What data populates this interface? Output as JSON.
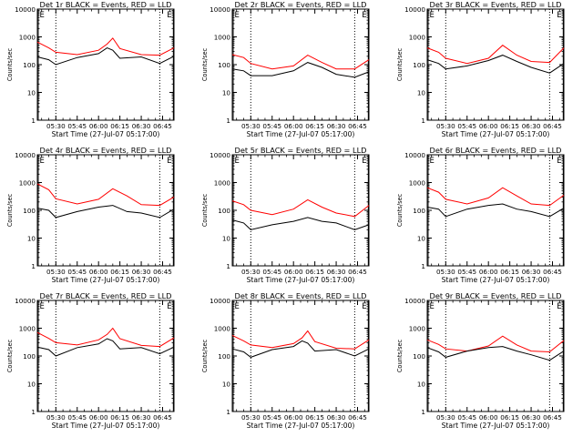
{
  "chart_data": {
    "type": "line",
    "grid": false,
    "yscale": "log",
    "ylim": [
      1,
      10000
    ],
    "ytick_labels": [
      "1",
      "10",
      "100",
      "1000",
      "10000"
    ],
    "ytick_values": [
      1,
      10,
      100,
      1000,
      10000
    ],
    "xlim": [
      "05:17:00",
      "06:53:00"
    ],
    "xtick_labels": [
      "05:30",
      "05:45",
      "06:00",
      "06:15",
      "06:30",
      "06:45"
    ],
    "xtick_values": [
      "05:30",
      "05:45",
      "06:00",
      "06:15",
      "06:30",
      "06:45"
    ],
    "ylabel": "Counts/sec",
    "xlabel": "Start Time (27-Jul-07 05:17:00)",
    "marker_label": "E",
    "marker_times": [
      "05:17:40",
      "06:52:30"
    ],
    "dotted_times": [
      "05:30",
      "06:43"
    ],
    "series_colors": {
      "events": "#000000",
      "lld": "#ff0000"
    },
    "panels": [
      {
        "title": "Det 1r BLACK = Events, RED = LLD",
        "lld": {
          "x": [
            "05:17",
            "05:25",
            "05:30",
            "05:45",
            "06:00",
            "06:06",
            "06:10",
            "06:15",
            "06:30",
            "06:43",
            "06:53"
          ],
          "y": [
            650,
            400,
            280,
            230,
            330,
            550,
            900,
            380,
            230,
            220,
            400
          ]
        },
        "events": {
          "x": [
            "05:17",
            "05:25",
            "05:30",
            "05:45",
            "06:00",
            "06:06",
            "06:10",
            "06:15",
            "06:30",
            "06:43",
            "06:53"
          ],
          "y": [
            190,
            150,
            100,
            180,
            250,
            400,
            330,
            170,
            190,
            110,
            200
          ]
        }
      },
      {
        "title": "Det 2r BLACK = Events, RED = LLD",
        "lld": {
          "x": [
            "05:17",
            "05:25",
            "05:30",
            "05:45",
            "06:00",
            "06:10",
            "06:20",
            "06:30",
            "06:43",
            "06:53"
          ],
          "y": [
            230,
            180,
            110,
            70,
            90,
            220,
            120,
            70,
            70,
            150
          ]
        },
        "events": {
          "x": [
            "05:17",
            "05:25",
            "05:30",
            "05:45",
            "06:00",
            "06:10",
            "06:20",
            "06:30",
            "06:43",
            "06:53"
          ],
          "y": [
            70,
            60,
            40,
            40,
            60,
            120,
            80,
            45,
            35,
            55
          ]
        }
      },
      {
        "title": "Det 3r BLACK = Events, RED = LLD",
        "lld": {
          "x": [
            "05:17",
            "05:25",
            "05:30",
            "05:45",
            "06:00",
            "06:10",
            "06:20",
            "06:30",
            "06:43",
            "06:53"
          ],
          "y": [
            400,
            280,
            170,
            110,
            170,
            500,
            220,
            130,
            120,
            400
          ]
        },
        "events": {
          "x": [
            "05:17",
            "05:25",
            "05:30",
            "05:45",
            "06:00",
            "06:10",
            "06:20",
            "06:30",
            "06:43",
            "06:53"
          ],
          "y": [
            150,
            110,
            70,
            90,
            140,
            220,
            130,
            80,
            50,
            110
          ]
        }
      },
      {
        "title": "Det 4r BLACK = Events, RED = LLD",
        "lld": {
          "x": [
            "05:17",
            "05:25",
            "05:30",
            "05:45",
            "06:00",
            "06:10",
            "06:20",
            "06:30",
            "06:43",
            "06:53"
          ],
          "y": [
            900,
            550,
            260,
            170,
            250,
            600,
            330,
            160,
            150,
            300
          ]
        },
        "events": {
          "x": [
            "05:17",
            "05:25",
            "05:30",
            "05:45",
            "06:00",
            "06:10",
            "06:20",
            "06:30",
            "06:43",
            "06:53"
          ],
          "y": [
            120,
            100,
            55,
            90,
            130,
            150,
            90,
            80,
            55,
            110
          ]
        }
      },
      {
        "title": "Det 5r BLACK = Events, RED = LLD",
        "lld": {
          "x": [
            "05:17",
            "05:25",
            "05:30",
            "05:45",
            "06:00",
            "06:10",
            "06:20",
            "06:30",
            "06:43",
            "06:53"
          ],
          "y": [
            220,
            160,
            100,
            70,
            110,
            240,
            130,
            80,
            60,
            150
          ]
        },
        "events": {
          "x": [
            "05:17",
            "05:25",
            "05:30",
            "05:45",
            "06:00",
            "06:10",
            "06:20",
            "06:30",
            "06:43",
            "06:53"
          ],
          "y": [
            45,
            35,
            20,
            30,
            40,
            55,
            40,
            35,
            20,
            30
          ]
        }
      },
      {
        "title": "Det 6r BLACK = Events, RED = LLD",
        "lld": {
          "x": [
            "05:17",
            "05:25",
            "05:30",
            "05:45",
            "06:00",
            "06:10",
            "06:20",
            "06:30",
            "06:43",
            "06:53"
          ],
          "y": [
            650,
            450,
            250,
            170,
            280,
            650,
            330,
            170,
            150,
            350
          ]
        },
        "events": {
          "x": [
            "05:17",
            "05:25",
            "05:30",
            "05:45",
            "06:00",
            "06:10",
            "06:20",
            "06:30",
            "06:43",
            "06:53"
          ],
          "y": [
            130,
            110,
            60,
            110,
            150,
            170,
            110,
            90,
            60,
            120
          ]
        }
      },
      {
        "title": "Det 7r BLACK = Events, RED = LLD",
        "lld": {
          "x": [
            "05:17",
            "05:25",
            "05:30",
            "05:45",
            "06:00",
            "06:06",
            "06:10",
            "06:15",
            "06:30",
            "06:43",
            "06:53"
          ],
          "y": [
            700,
            430,
            300,
            250,
            380,
            600,
            1000,
            420,
            240,
            220,
            450
          ]
        },
        "events": {
          "x": [
            "05:17",
            "05:25",
            "05:30",
            "05:45",
            "06:00",
            "06:06",
            "06:10",
            "06:15",
            "06:30",
            "06:43",
            "06:53"
          ],
          "y": [
            210,
            170,
            100,
            200,
            270,
            420,
            350,
            180,
            200,
            120,
            210
          ]
        }
      },
      {
        "title": "Det 8r BLACK = Events, RED = LLD",
        "lld": {
          "x": [
            "05:17",
            "05:25",
            "05:30",
            "05:45",
            "06:00",
            "06:06",
            "06:10",
            "06:15",
            "06:30",
            "06:43",
            "06:53"
          ],
          "y": [
            550,
            350,
            250,
            200,
            280,
            450,
            800,
            330,
            190,
            180,
            380
          ]
        },
        "events": {
          "x": [
            "05:17",
            "05:25",
            "05:30",
            "05:45",
            "06:00",
            "06:06",
            "06:10",
            "06:15",
            "06:30",
            "06:43",
            "06:53"
          ],
          "y": [
            180,
            140,
            90,
            170,
            220,
            350,
            290,
            150,
            170,
            100,
            180
          ]
        }
      },
      {
        "title": "Det 9r BLACK = Events, RED = LLD",
        "lld": {
          "x": [
            "05:17",
            "05:25",
            "05:30",
            "05:45",
            "06:00",
            "06:10",
            "06:20",
            "06:30",
            "06:43",
            "06:53"
          ],
          "y": [
            380,
            260,
            180,
            150,
            230,
            520,
            250,
            150,
            140,
            360
          ]
        },
        "events": {
          "x": [
            "05:17",
            "05:25",
            "05:30",
            "05:45",
            "06:00",
            "06:10",
            "06:20",
            "06:30",
            "06:43",
            "06:53"
          ],
          "y": [
            200,
            140,
            90,
            150,
            200,
            220,
            150,
            110,
            70,
            150
          ]
        }
      }
    ]
  }
}
